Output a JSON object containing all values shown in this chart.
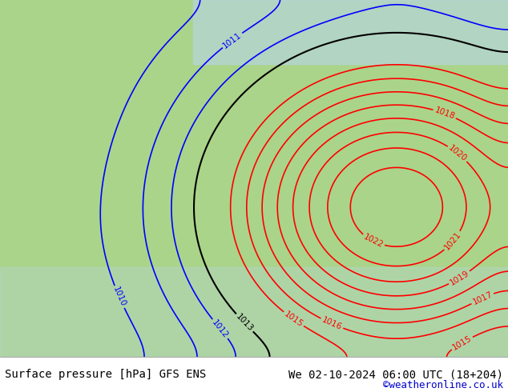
{
  "title_left": "Surface pressure [hPa] GFS ENS",
  "title_right": "We 02-10-2024 06:00 UTC (18+204)",
  "title_right2": "©weatheronline.co.uk",
  "bg_land": "#aad48a",
  "bg_sea": "#d0e8f0",
  "bg_other": "#c8dfc8",
  "text_color_left": "#000000",
  "text_color_right": "#000000",
  "text_color_web": "#0000cc",
  "font_size_title": 10,
  "font_size_web": 9,
  "contour_color_blue": "#0000ff",
  "contour_color_black": "#000000",
  "contour_color_red": "#ff0000",
  "bottom_bar_color": "#ffffff",
  "figsize": [
    6.34,
    4.9
  ],
  "dpi": 100
}
